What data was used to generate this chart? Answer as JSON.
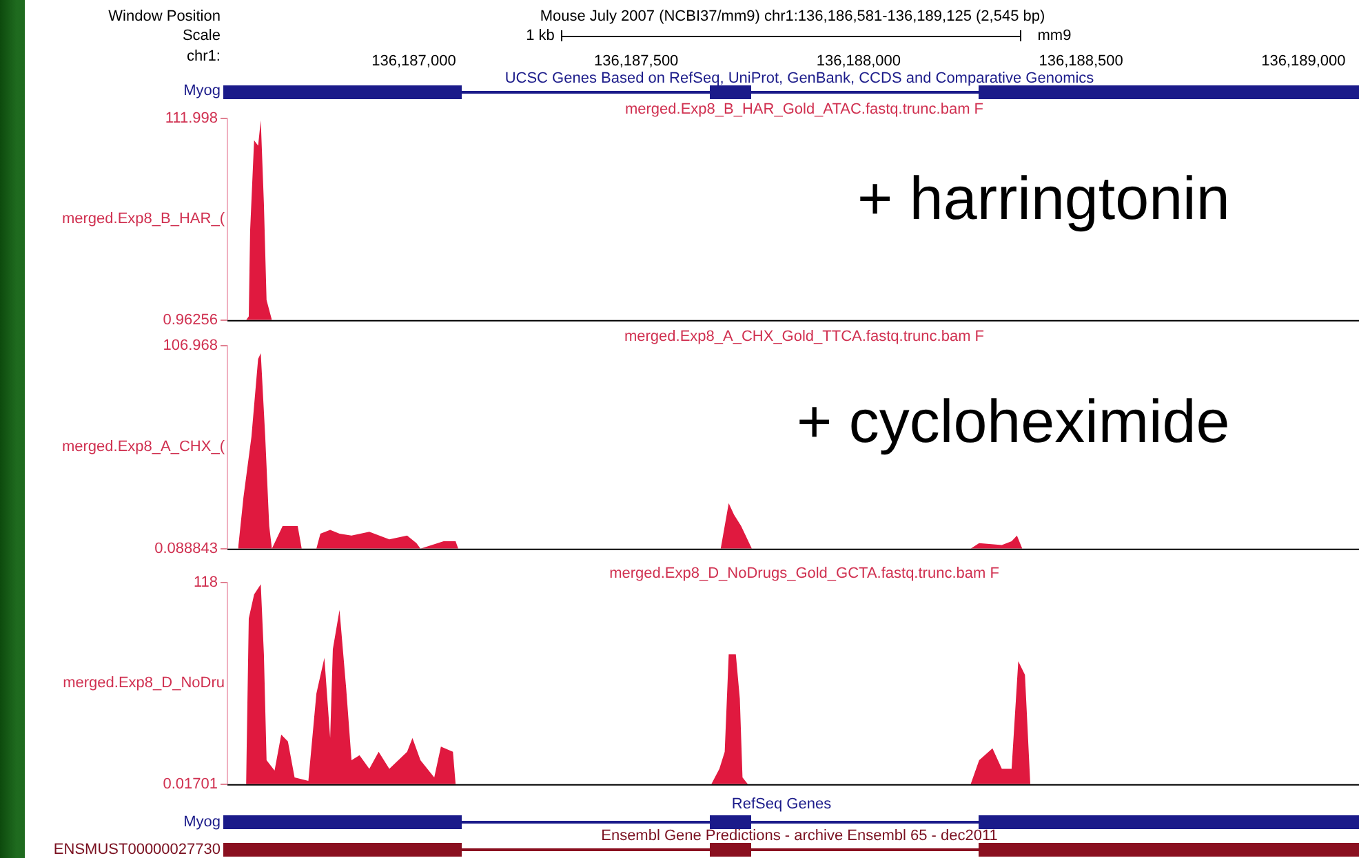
{
  "chart_data": [
    {
      "type": "area",
      "title": "merged.Exp8_B_HAR_Gold_ATAC.fastq.trunc.bam F",
      "ylabel": "merged.Exp8_B_HAR_(",
      "color": "#e0193f",
      "marker": "none",
      "x": [
        136186623,
        136186629,
        136186632,
        136186641,
        136186650,
        136186656,
        136186663,
        136186669,
        136186681
      ],
      "values": [
        1,
        3,
        50,
        100,
        97,
        111,
        65,
        12,
        1
      ],
      "xlim": [
        136186581,
        136189125
      ],
      "ylim": [
        0.96256,
        111.998
      ],
      "xticks": [
        {
          "value": 136187000,
          "label": "136,187,000"
        },
        {
          "value": 136187500,
          "label": "136,187,500"
        },
        {
          "value": 136188000,
          "label": "136,188,000"
        },
        {
          "value": 136188500,
          "label": "136,188,500"
        },
        {
          "value": 136189000,
          "label": "136,189,000"
        }
      ],
      "yticks": [
        0.96256,
        111.998
      ],
      "annotations": [
        "Window Position",
        "Mouse July 2007 (NCBI37/mm9)   chr1:136,186,581-136,189,125 (2,545 bp)",
        "Scale",
        "1 kb",
        "mm9",
        "chr1:",
        "UCSC Genes Based on RefSeq, UniProt, GenBank, CCDS and Comparative Genomics",
        "Myog",
        "+ harringtonin"
      ]
    },
    {
      "type": "area",
      "title": "merged.Exp8_A_CHX_Gold_TTCA.fastq.trunc.bam F",
      "ylabel": "merged.Exp8_A_CHX_(",
      "color": "#e0193f",
      "marker": "none",
      "x": [
        136186605,
        136186617,
        136186635,
        136186650,
        136186656,
        136186666,
        136186675,
        136186681,
        136186705,
        136186717,
        136186739,
        136186748,
        136186781,
        136186790,
        136186812,
        136186833,
        136186860,
        136186900,
        136186945,
        136186985,
        136187006,
        136187015,
        136187067,
        136187094,
        136187100,
        136187690,
        136187708,
        136187720,
        136187736,
        136187760,
        136188252,
        136188271,
        136188322,
        136188344,
        136188356,
        136188368
      ],
      "values": [
        0.1,
        27,
        59,
        100,
        103,
        59,
        12,
        0.1,
        12,
        12,
        12,
        0.1,
        0.1,
        8,
        10,
        8,
        7,
        9,
        5,
        7,
        3,
        0.1,
        4,
        4,
        0.1,
        0.1,
        24,
        18,
        12,
        0.1,
        0.1,
        3,
        2,
        4,
        7,
        0.1
      ],
      "xlim": [
        136186581,
        136189125
      ],
      "ylim": [
        0.088843,
        106.968
      ],
      "yticks": [
        0.088843,
        106.968
      ],
      "tick_labels": "y",
      "annotations": [
        "+ cycloheximide"
      ]
    },
    {
      "type": "area",
      "title": "merged.Exp8_D_NoDrugs_Gold_GCTA.fastq.trunc.bam F",
      "ylabel": "merged.Exp8_D_NoDru",
      "color": "#e0193f",
      "marker": "none",
      "x": [
        136186623,
        136186629,
        136186641,
        136186656,
        136186663,
        136186669,
        136186687,
        136186702,
        136186717,
        136186732,
        136186763,
        136186781,
        136186799,
        136186812,
        136186818,
        136186833,
        136186848,
        136186860,
        136186878,
        136186900,
        136186921,
        136186945,
        136186985,
        136186997,
        136187015,
        136187046,
        136187061,
        136187088,
        136187094,
        136187669,
        136187687,
        136187699,
        136187708,
        136187724,
        136187733,
        136187739,
        136187751,
        136188252,
        136188271,
        136188301,
        136188322,
        136188344,
        136188359,
        136188374,
        136188386
      ],
      "values": [
        0.02,
        97,
        111,
        117,
        76,
        14,
        8,
        29,
        25,
        4,
        2,
        53,
        74,
        27,
        79,
        102,
        56,
        14,
        17,
        9,
        19,
        9,
        19,
        27,
        14,
        4,
        22,
        19,
        0.02,
        0.02,
        9,
        19,
        76,
        76,
        50,
        4,
        0.02,
        0.02,
        14,
        21,
        9,
        9,
        72,
        64,
        0.02
      ],
      "xlim": [
        136186581,
        136189125
      ],
      "ylim": [
        0.01701,
        118
      ],
      "yticks": [
        0.01701,
        118
      ],
      "tick_labels": "y",
      "annotations": [
        "RefSeq Genes",
        "Myog",
        "Ensembl Gene Predictions - archive Ensembl 65 - dec2011",
        "ENSMUST00000027730"
      ]
    }
  ]
}
